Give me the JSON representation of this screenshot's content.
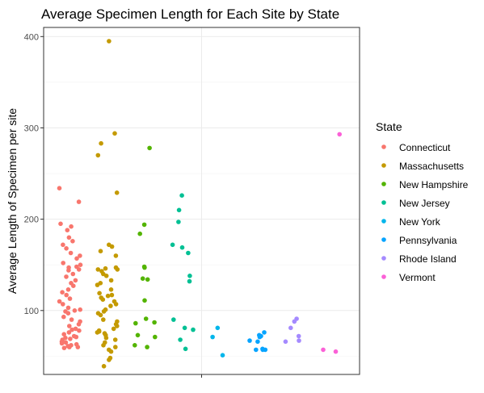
{
  "chart_data": {
    "type": "scatter",
    "title": "Average Specimen Length for Each Site by State",
    "ylabel": "Average Length of Specimen per site",
    "xlabel": "",
    "y_ticks": [
      100,
      200,
      300,
      400
    ],
    "ylim": [
      30,
      410
    ],
    "grid": true,
    "legend": {
      "title": "State",
      "placement": "right"
    },
    "series": [
      {
        "name": "Connecticut",
        "color": "#F8766D",
        "values": [
          234,
          219,
          195,
          192,
          188,
          180,
          176,
          172,
          168,
          163,
          160,
          157,
          152,
          150,
          148,
          147,
          145,
          144,
          140,
          137,
          133,
          130,
          127,
          123,
          120,
          117,
          113,
          110,
          107,
          103,
          101,
          100,
          99,
          97,
          93,
          90,
          88,
          85,
          83,
          80,
          79,
          78,
          76,
          74,
          72,
          71,
          70,
          69,
          68,
          66,
          65,
          64,
          63,
          62,
          61,
          60,
          60,
          59
        ]
      },
      {
        "name": "Massachusetts",
        "color": "#C49A00",
        "values": [
          395,
          294,
          283,
          270,
          229,
          172,
          170,
          165,
          160,
          147,
          146,
          145,
          145,
          143,
          140,
          138,
          133,
          130,
          128,
          123,
          119,
          117,
          116,
          114,
          112,
          110,
          107,
          105,
          101,
          99,
          97,
          95,
          90,
          88,
          85,
          83,
          80,
          78,
          77,
          76,
          75,
          73,
          70,
          68,
          65,
          62,
          60,
          57,
          55,
          48,
          46,
          39
        ]
      },
      {
        "name": "New Hampshire",
        "color": "#53B400",
        "values": [
          278,
          194,
          184,
          148,
          147,
          135,
          134,
          111,
          91,
          87,
          86,
          73,
          71,
          62,
          60
        ]
      },
      {
        "name": "New Jersey",
        "color": "#00C094",
        "values": [
          226,
          210,
          197,
          172,
          169,
          163,
          138,
          132,
          90,
          81,
          79,
          68,
          58
        ]
      },
      {
        "name": "New York",
        "color": "#00B6EB",
        "values": [
          81,
          71,
          51
        ]
      },
      {
        "name": "Pennsylvania",
        "color": "#06A4FF",
        "values": [
          76,
          73,
          72,
          71,
          67,
          66,
          58,
          57,
          57,
          57
        ]
      },
      {
        "name": "Rhode Island",
        "color": "#A58AFF",
        "values": [
          91,
          88,
          81,
          72,
          67,
          66
        ]
      },
      {
        "name": "Vermont",
        "color": "#FB61D7",
        "values": [
          293,
          57,
          55
        ]
      }
    ]
  }
}
